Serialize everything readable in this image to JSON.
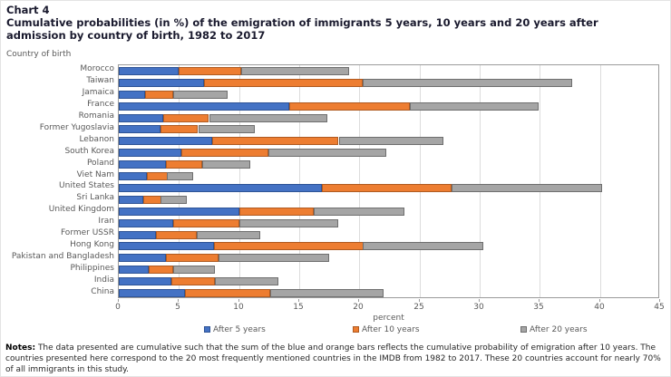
{
  "page": {
    "chart_label": "Chart 4",
    "title": "Cumulative probabilities (in %) of the emigration of immigrants 5 years, 10 years and 20 years after admission by country of birth, 1982 to 2017",
    "axis_note": "Country of birth",
    "notes_label": "Notes:",
    "notes_text": " The data presented are cumulative such that the sum of the blue and orange bars reflects the cumulative probability of emigration after 10 years. The countries presented here correspond to the 20 most frequently mentioned countries in the IMDB from 1982 to 2017. These 20 countries account for nearly 70% of all immigrants in this study."
  },
  "chart_data": {
    "type": "bar",
    "orientation": "horizontal",
    "stacked": true,
    "title": "Cumulative probabilities (in %) of the emigration of immigrants 5 years, 10 years and 20 years after admission by country of birth, 1982 to 2017",
    "xlabel": "percent",
    "ylabel": "Country of birth",
    "xlim": [
      0,
      45
    ],
    "xticks": [
      0,
      5,
      10,
      15,
      20,
      25,
      30,
      35,
      40,
      45
    ],
    "grid": true,
    "legend_position": "bottom",
    "categories": [
      "Morocco",
      "Taiwan",
      "Jamaica",
      "France",
      "Romania",
      "Former Yugoslavia",
      "Lebanon",
      "South Korea",
      "Poland",
      "Viet Nam",
      "United States",
      "Sri Lanka",
      "United Kingdom",
      "Iran",
      "Former USSR",
      "Hong Kong",
      "Pakistan and Bangladesh",
      "Philippines",
      "India",
      "China"
    ],
    "series": [
      {
        "name": "After 5 years",
        "color": "#4472c4",
        "border_color": "#2e5395",
        "cumulative_values": [
          5.0,
          7.1,
          2.2,
          14.2,
          3.7,
          3.5,
          7.8,
          5.2,
          3.9,
          2.3,
          16.9,
          2.0,
          10.0,
          4.5,
          3.1,
          7.9,
          3.9,
          2.5,
          4.4,
          5.5
        ]
      },
      {
        "name": "After 10 years",
        "color": "#ed7d31",
        "border_color": "#ae5a21",
        "cumulative_values": [
          10.2,
          20.3,
          4.5,
          24.2,
          7.5,
          6.6,
          18.3,
          12.4,
          6.9,
          4.0,
          27.7,
          3.5,
          16.2,
          10.0,
          6.5,
          20.3,
          8.3,
          4.5,
          8.0,
          12.6
        ]
      },
      {
        "name": "After 20 years",
        "color": "#a5a5a5",
        "border_color": "#6e6e6e",
        "cumulative_values": [
          19.2,
          37.7,
          9.0,
          34.9,
          17.3,
          11.3,
          27.0,
          22.2,
          10.9,
          6.2,
          40.2,
          5.7,
          23.7,
          18.2,
          11.8,
          30.3,
          17.5,
          8.0,
          13.3,
          22.0
        ]
      }
    ]
  }
}
